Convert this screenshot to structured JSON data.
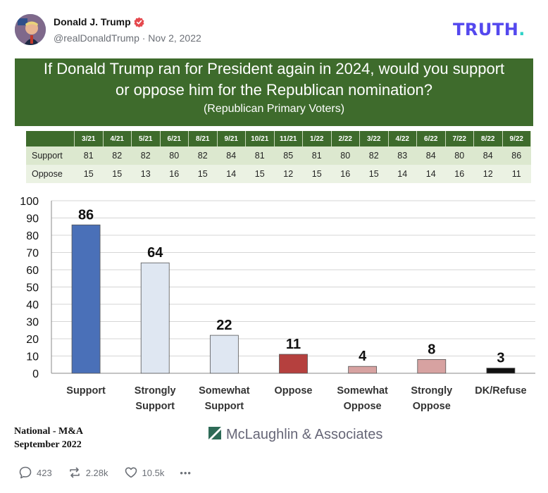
{
  "post": {
    "author_name": "Donald J. Trump",
    "handle_line": "@realDonaldTrump · Nov 2, 2022",
    "logo": "TRUTH",
    "logo_dot": ".",
    "verified_color": "#e5484d"
  },
  "figure": {
    "title_line1": "If Donald Trump ran for President again in 2024, would you support",
    "title_line2": "or oppose him for the Republican nomination?",
    "subtitle": "(Republican Primary Voters)",
    "table": {
      "months": [
        "3/21",
        "4/21",
        "5/21",
        "6/21",
        "8/21",
        "9/21",
        "10/21",
        "11/21",
        "1/22",
        "2/22",
        "3/22",
        "4/22",
        "6/22",
        "7/22",
        "8/22",
        "9/22"
      ],
      "rows": [
        {
          "label": "Support",
          "values": [
            "81",
            "82",
            "82",
            "80",
            "82",
            "84",
            "81",
            "85",
            "81",
            "80",
            "82",
            "83",
            "84",
            "80",
            "84",
            "86"
          ]
        },
        {
          "label": "Oppose",
          "values": [
            "15",
            "15",
            "13",
            "16",
            "15",
            "14",
            "15",
            "12",
            "15",
            "16",
            "15",
            "14",
            "14",
            "16",
            "12",
            "11"
          ]
        }
      ]
    },
    "source_line1": "National - M&A",
    "source_line2": "September 2022",
    "pollster": "McLaughlin & Associates"
  },
  "chart_data": {
    "type": "bar",
    "categories": [
      [
        "Support"
      ],
      [
        "Strongly",
        "Support"
      ],
      [
        "Somewhat",
        "Support"
      ],
      [
        "Oppose"
      ],
      [
        "Somewhat",
        "Oppose"
      ],
      [
        "Strongly",
        "Oppose"
      ],
      [
        "DK/Refuse"
      ]
    ],
    "values": [
      86,
      64,
      22,
      11,
      4,
      8,
      3
    ],
    "colors": [
      "#4a70b8",
      "#dfe7f2",
      "#dfe7f2",
      "#b5403e",
      "#d7a2a1",
      "#d7a2a1",
      "#111111"
    ],
    "ylim": [
      0,
      100
    ],
    "yticks": [
      0,
      10,
      20,
      30,
      40,
      50,
      60,
      70,
      80,
      90,
      100
    ],
    "grid": true,
    "title": "",
    "xlabel": "",
    "ylabel": ""
  },
  "actions": {
    "replies": "423",
    "retruths": "2.28k",
    "likes": "10.5k",
    "more": "•••"
  }
}
